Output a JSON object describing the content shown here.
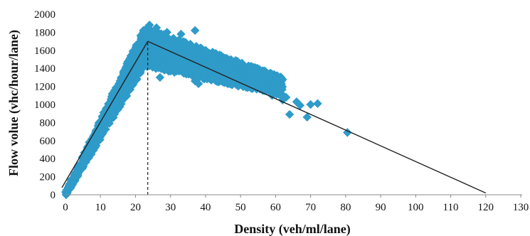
{
  "chart_data": {
    "type": "scatter",
    "title": "",
    "xlabel": "Density (veh/ml/lane)",
    "ylabel": "Flow volue (vhc/hour/lane)",
    "xlim": [
      0,
      130
    ],
    "ylim": [
      0,
      2000
    ],
    "x_ticks": [
      0,
      10,
      20,
      30,
      40,
      50,
      60,
      70,
      80,
      90,
      100,
      110,
      120,
      130
    ],
    "y_ticks": [
      0,
      200,
      400,
      600,
      800,
      1000,
      1200,
      1400,
      1600,
      1800,
      2000
    ],
    "grid": false,
    "legend": "none",
    "colors": {
      "points": "#2E9BC9",
      "fit_line": "#222222",
      "axis": "#888888"
    },
    "points_cluster": {
      "free_flow_band": {
        "x_range": [
          0,
          23
        ],
        "slope_low": 64,
        "slope_high": 82
      },
      "congested_band": {
        "x_range": [
          23,
          62
        ],
        "y_start_range": [
          1420,
          1850
        ],
        "y_end_range": [
          1100,
          1300
        ]
      }
    },
    "outlier_points": [
      {
        "x": 24,
        "y": 1880
      },
      {
        "x": 26,
        "y": 1850
      },
      {
        "x": 29,
        "y": 1800
      },
      {
        "x": 33,
        "y": 1780
      },
      {
        "x": 37,
        "y": 1820
      },
      {
        "x": 24,
        "y": 1430
      },
      {
        "x": 27,
        "y": 1300
      },
      {
        "x": 30,
        "y": 1410
      },
      {
        "x": 34,
        "y": 1350
      },
      {
        "x": 37,
        "y": 1260
      },
      {
        "x": 38,
        "y": 1230
      },
      {
        "x": 42,
        "y": 1290
      },
      {
        "x": 46,
        "y": 1240
      },
      {
        "x": 57,
        "y": 1180
      },
      {
        "x": 59,
        "y": 1100
      },
      {
        "x": 61,
        "y": 1130
      },
      {
        "x": 62,
        "y": 1050
      },
      {
        "x": 63,
        "y": 1080
      },
      {
        "x": 64,
        "y": 890
      },
      {
        "x": 66,
        "y": 1030
      },
      {
        "x": 67,
        "y": 990
      },
      {
        "x": 69,
        "y": 860
      },
      {
        "x": 70,
        "y": 1000
      },
      {
        "x": 72,
        "y": 1010
      },
      {
        "x": 80.5,
        "y": 690
      },
      {
        "x": 0.5,
        "y": 30
      },
      {
        "x": 1,
        "y": 60
      }
    ],
    "fit_lines": [
      {
        "points": [
          [
            -1,
            80
          ],
          [
            23.5,
            1700
          ]
        ]
      },
      {
        "points": [
          [
            23.5,
            1700
          ],
          [
            120,
            20
          ]
        ]
      }
    ],
    "reference_line": {
      "x": 23.5,
      "y_from": 0,
      "y_to": 1700,
      "style": "dashed"
    }
  }
}
